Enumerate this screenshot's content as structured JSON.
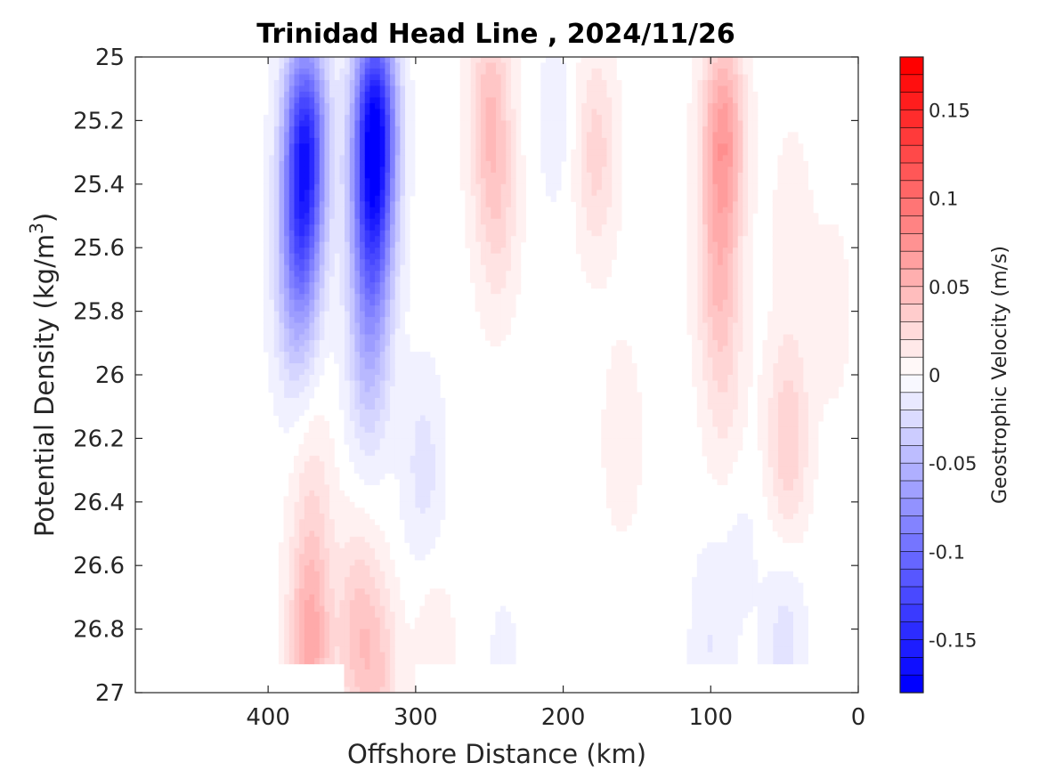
{
  "chart_data": {
    "type": "heatmap",
    "title": "Trinidad Head Line , 2024/11/26",
    "xlabel": "Offshore Distance (km)",
    "ylabel_main": "Potential Density (kg/m",
    "ylabel_sup": "3",
    "ylabel_close": ")",
    "colorbar_label": "Geostrophic Velocity (m/s)",
    "x_reversed": true,
    "xlim": [
      0,
      490
    ],
    "ylim": [
      25,
      27
    ],
    "y_reversed": true,
    "x_ticks": [
      400,
      300,
      200,
      100,
      0
    ],
    "y_ticks": [
      25,
      25.2,
      25.4,
      25.6,
      25.8,
      26,
      26.2,
      26.4,
      26.6,
      26.8,
      27
    ],
    "y_tick_labels": [
      "25",
      "25.2",
      "25.4",
      "25.6",
      "25.8",
      "26",
      "26.2",
      "26.4",
      "26.6",
      "26.8",
      "27"
    ],
    "colorbar_range": [
      -0.18,
      0.18
    ],
    "colorbar_levels_step": 0.01,
    "colorbar_ticks": [
      0.15,
      0.1,
      0.05,
      0,
      -0.05,
      -0.1,
      -0.15
    ],
    "colorbar_tick_labels": [
      "0.15",
      "0.1",
      "0.05",
      "0",
      "-0.05",
      "-0.1",
      "-0.15"
    ],
    "colors": {
      "positive": "#ff0000",
      "negative": "#0000ff",
      "zero": "#ffffff"
    },
    "features": [
      {
        "x": 375,
        "y": 25.25,
        "v": -0.13
      },
      {
        "x": 378,
        "y": 25.55,
        "v": -0.08
      },
      {
        "x": 382,
        "y": 25.8,
        "v": -0.03
      },
      {
        "x": 328,
        "y": 25.2,
        "v": -0.16
      },
      {
        "x": 330,
        "y": 25.55,
        "v": -0.1
      },
      {
        "x": 332,
        "y": 25.95,
        "v": -0.04
      },
      {
        "x": 295,
        "y": 26.3,
        "v": -0.02
      },
      {
        "x": 205,
        "y": 25.2,
        "v": -0.01
      },
      {
        "x": 250,
        "y": 25.15,
        "v": 0.04
      },
      {
        "x": 245,
        "y": 25.5,
        "v": 0.025
      },
      {
        "x": 178,
        "y": 25.3,
        "v": 0.03
      },
      {
        "x": 160,
        "y": 26.2,
        "v": 0.012
      },
      {
        "x": 92,
        "y": 25.25,
        "v": 0.07
      },
      {
        "x": 95,
        "y": 25.7,
        "v": 0.04
      },
      {
        "x": 90,
        "y": 26.1,
        "v": 0.015
      },
      {
        "x": 48,
        "y": 26.2,
        "v": 0.035
      },
      {
        "x": 45,
        "y": 25.5,
        "v": 0.01
      },
      {
        "x": 372,
        "y": 26.85,
        "v": 0.06
      },
      {
        "x": 340,
        "y": 26.8,
        "v": 0.035
      },
      {
        "x": 370,
        "y": 26.4,
        "v": 0.02
      },
      {
        "x": 325,
        "y": 26.95,
        "v": 0.03
      },
      {
        "x": 288,
        "y": 26.9,
        "v": 0.015
      },
      {
        "x": 100,
        "y": 26.85,
        "v": -0.015
      },
      {
        "x": 50,
        "y": 26.85,
        "v": -0.02
      },
      {
        "x": 80,
        "y": 26.5,
        "v": -0.008
      },
      {
        "x": 240,
        "y": 26.95,
        "v": -0.008
      },
      {
        "x": 18,
        "y": 25.8,
        "v": 0.01
      }
    ]
  }
}
